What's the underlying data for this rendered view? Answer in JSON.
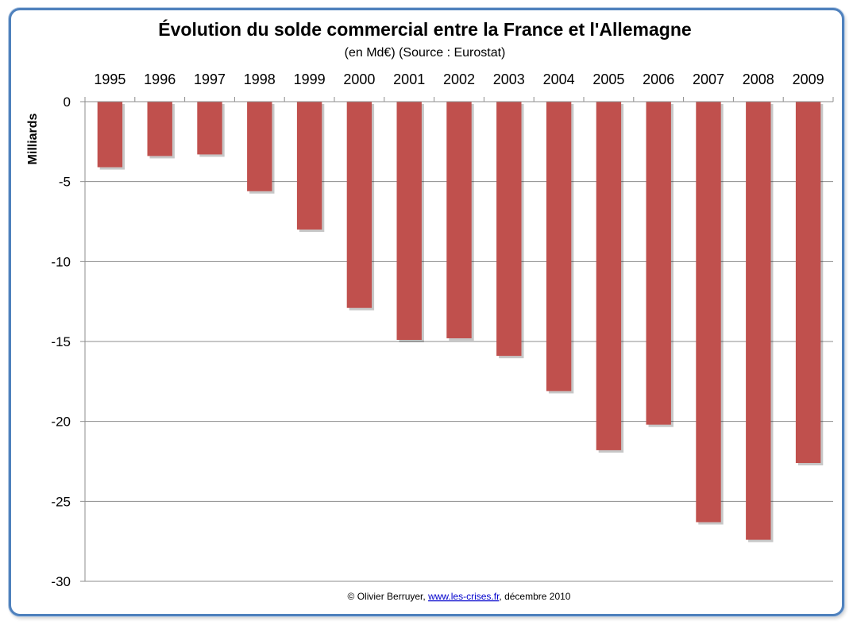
{
  "chart_data": {
    "type": "bar",
    "title": "Évolution du solde commercial entre la France et l'Allemagne",
    "subtitle": "(en Md€) (Source : Eurostat)",
    "ylabel": "Milliards",
    "xlabel": "",
    "categories": [
      "1995",
      "1996",
      "1997",
      "1998",
      "1999",
      "2000",
      "2001",
      "2002",
      "2003",
      "2004",
      "2005",
      "2006",
      "2007",
      "2008",
      "2009"
    ],
    "values": [
      -4.1,
      -3.4,
      -3.3,
      -5.6,
      -8.0,
      -12.9,
      -14.9,
      -14.8,
      -15.9,
      -18.1,
      -21.8,
      -20.2,
      -26.3,
      -27.4,
      -22.6
    ],
    "ylim": [
      -30,
      0
    ],
    "yticks": [
      0,
      -5,
      -10,
      -15,
      -20,
      -25,
      -30
    ],
    "ytick_labels": [
      "0",
      "-5",
      "-10",
      "-15",
      "-20",
      "-25",
      "-30"
    ],
    "xaxis_position": "top",
    "grid": true,
    "bar_color": "#c0504d",
    "legend": "none"
  },
  "credit": {
    "prefix": "© Olivier Berruyer, ",
    "link": "www.les-crises.fr",
    "suffix": ", décembre 2010"
  }
}
